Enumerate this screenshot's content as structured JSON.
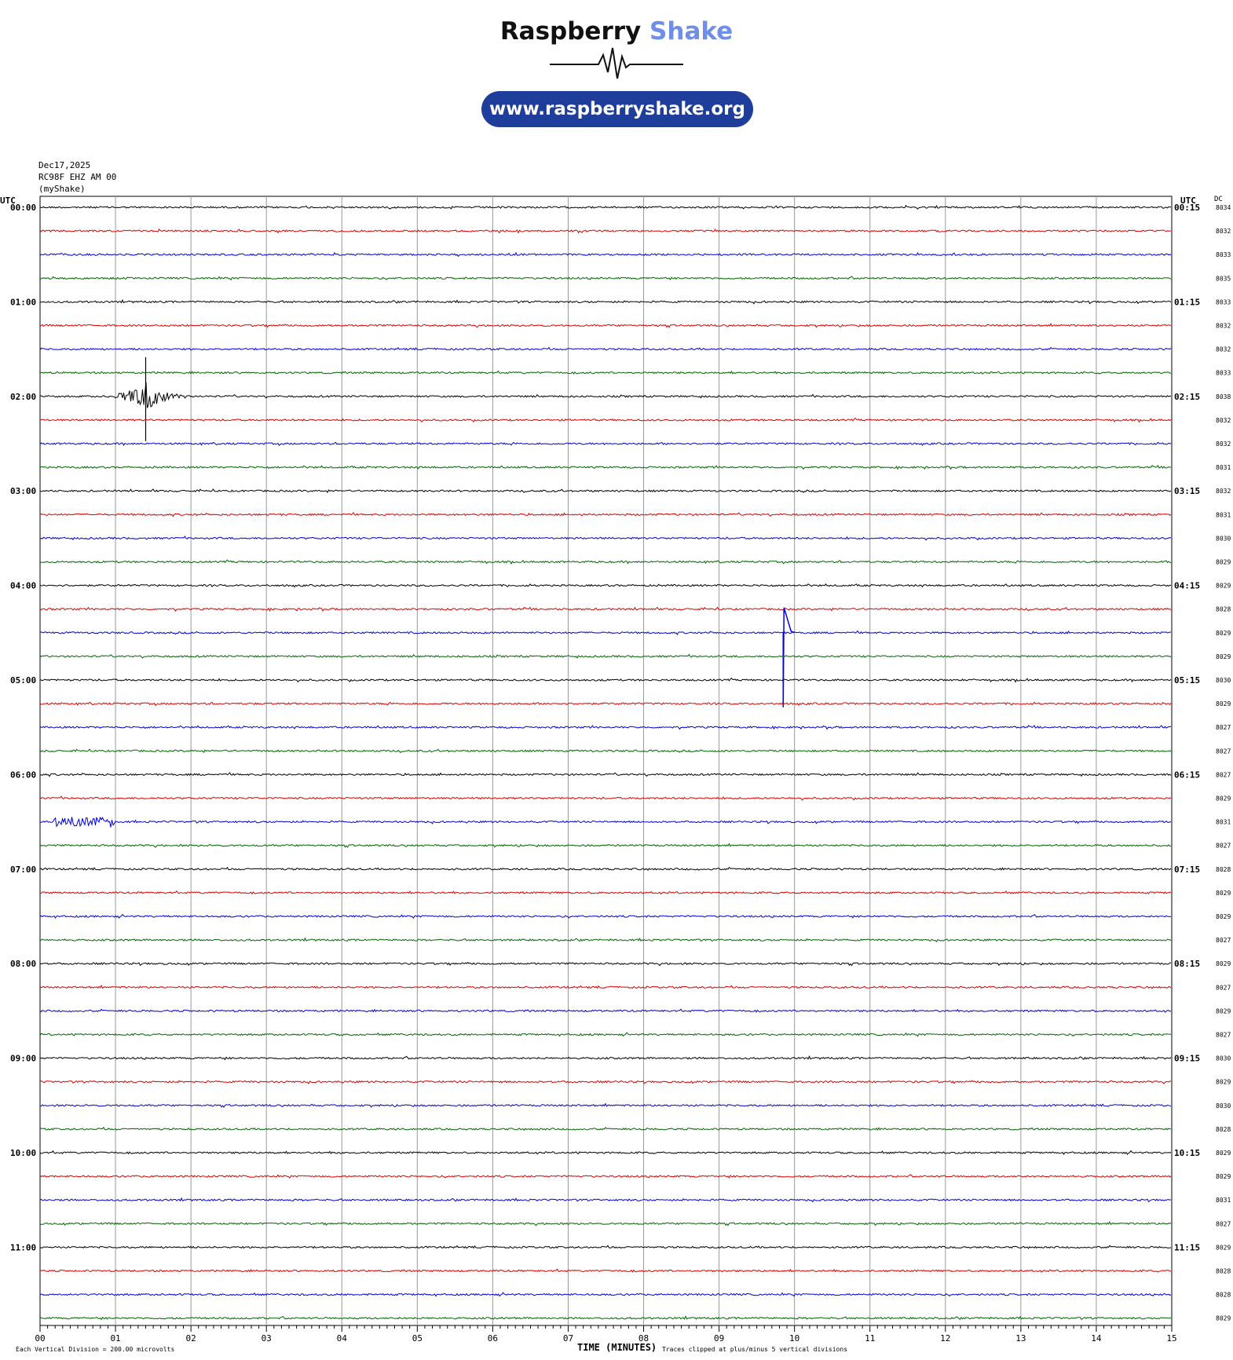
{
  "logo": {
    "brand_main": "Raspberry",
    "brand_accent": "Shake",
    "url": "www.raspberryshake.org"
  },
  "header": {
    "date": "Dec17,2025",
    "station": "RC98F EHZ AM 00",
    "source": "(myShake)"
  },
  "labels": {
    "utc_left": "UTC",
    "utc_right": "UTC",
    "dc": "DC",
    "xlabel": "TIME (MINUTES)",
    "footer_left": "Each Vertical Division =  200.00 microvolts",
    "footer_right": "Traces clipped at plus/minus 5 vertical divisions"
  },
  "colors": {
    "trace_cycle": [
      "#000000",
      "#dd0000",
      "#0000dd",
      "#006600"
    ],
    "grid": "#999999",
    "accent": "#6f8ee8",
    "pill": "#1f3d9a"
  },
  "chart_data": {
    "type": "line",
    "title": "",
    "xlabel": "TIME (MINUTES)",
    "ylabel": "",
    "xlim": [
      0,
      15
    ],
    "x_ticks": [
      "00",
      "01",
      "02",
      "03",
      "04",
      "05",
      "06",
      "07",
      "08",
      "09",
      "10",
      "11",
      "12",
      "13",
      "14",
      "15"
    ],
    "row_interval_minutes": 15,
    "left_hour_labels": [
      "00:00",
      "01:00",
      "02:00",
      "03:00",
      "04:00",
      "05:00",
      "06:00",
      "07:00",
      "08:00",
      "09:00",
      "10:00",
      "11:00"
    ],
    "right_hour_labels": [
      "00:15",
      "01:15",
      "02:15",
      "03:15",
      "04:15",
      "05:15",
      "06:15",
      "07:15",
      "08:15",
      "09:15",
      "10:15",
      "11:15"
    ],
    "dc_values": [
      "8034",
      "8032",
      "8033",
      "8035",
      "8033",
      "8032",
      "8032",
      "8033",
      "8038",
      "8032",
      "8032",
      "8031",
      "8032",
      "8031",
      "8030",
      "8029",
      "8029",
      "8028",
      "8029",
      "8029",
      "8030",
      "8029",
      "8027",
      "8027",
      "8027",
      "8029",
      "8031",
      "8027",
      "8028",
      "8029",
      "8029",
      "8027",
      "8029",
      "8027",
      "8029",
      "8027",
      "8030",
      "8029",
      "8030",
      "8028",
      "8029",
      "8029",
      "8031",
      "8027",
      "8029",
      "8028",
      "8028",
      "8029"
    ],
    "events": [
      {
        "row": 8,
        "minute": 1.4,
        "description": "local earthquake burst"
      },
      {
        "row": 18,
        "minute": 9.85,
        "description": "spike"
      },
      {
        "row": 26,
        "minute": 0.7,
        "description": "noise burst"
      }
    ]
  }
}
